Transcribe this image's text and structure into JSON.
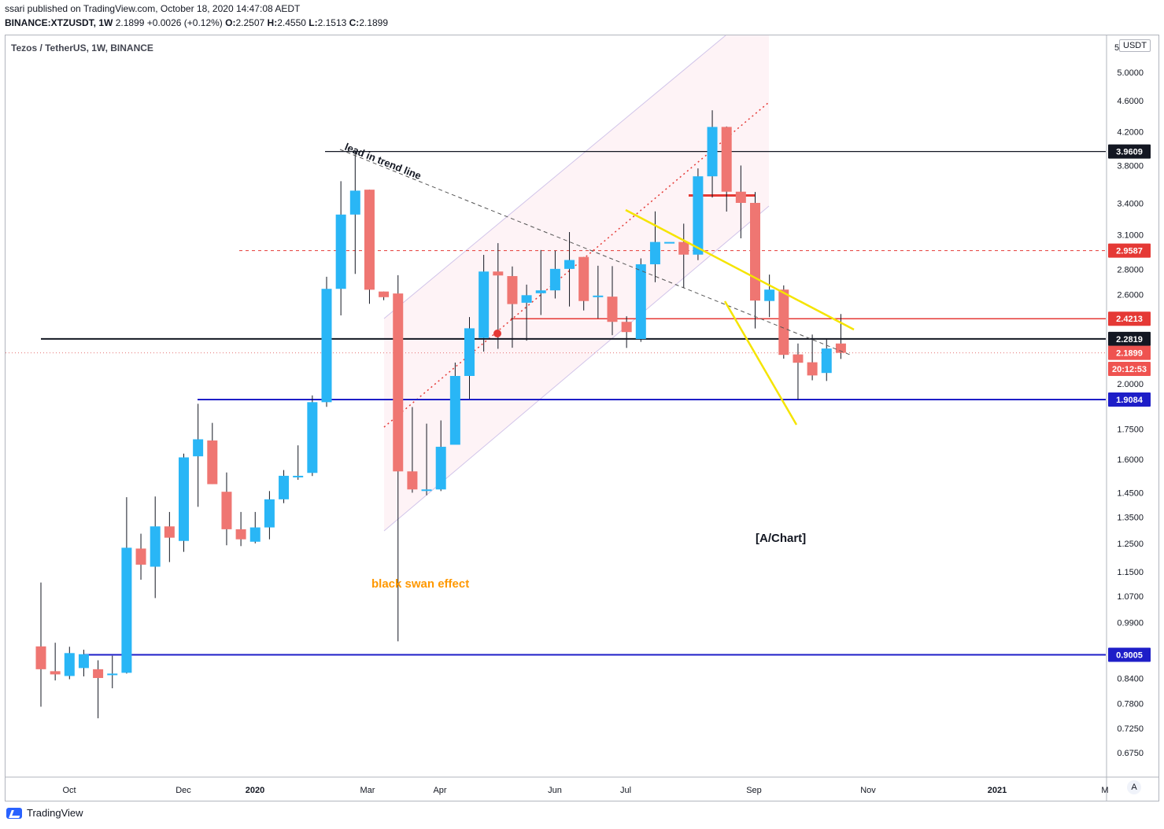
{
  "header": {
    "line1": "ssari published on TradingView.com, October 18, 2020 14:47:08 AEDT",
    "symbol": "BINANCE:XTZUSDT, 1W",
    "price": "2.1899",
    "change": "+0.0026 (+0.12%)",
    "o_label": "O:",
    "o_value": "2.2507",
    "h_label": "H:",
    "h_value": "2.4550",
    "l_label": "L:",
    "l_value": "2.1513",
    "c_label": "C:",
    "c_value": "2.1899"
  },
  "legend_title": "Tezos / TetherUS, 1W, BINANCE",
  "unit": "USDT",
  "auto_label": "A",
  "brand": "TradingView",
  "colors": {
    "up": "#29b6f6",
    "down": "#ef7672",
    "background": "#ffffff"
  },
  "chart_data": {
    "type": "candlestick",
    "scale": "log",
    "ylim": [
      0.63,
      5.5
    ],
    "title": "Tezos / TetherUS, 1W, BINANCE",
    "x_tick_labels": [
      "Oct",
      "Dec",
      "2020",
      "Mar",
      "Apr",
      "Jun",
      "Jul",
      "Sep",
      "Nov",
      "2021",
      "M"
    ],
    "y_tick_labels": [
      "0.6750",
      "0.7250",
      "0.7800",
      "0.8400",
      "0.9900",
      "1.0700",
      "1.1500",
      "1.2500",
      "1.3500",
      "1.4500",
      "1.6000",
      "1.7500",
      "2.0000",
      "2.6000",
      "2.8000",
      "3.1000",
      "3.4000",
      "3.8000",
      "4.2000",
      "4.6000",
      "5.0000",
      "5"
    ],
    "candles": [
      {
        "o": 0.923,
        "h": 1.114,
        "l": 0.773,
        "c": 0.863
      },
      {
        "o": 0.858,
        "h": 0.933,
        "l": 0.835,
        "c": 0.85
      },
      {
        "o": 0.846,
        "h": 0.922,
        "l": 0.838,
        "c": 0.905
      },
      {
        "o": 0.866,
        "h": 0.914,
        "l": 0.845,
        "c": 0.902
      },
      {
        "o": 0.863,
        "h": 0.886,
        "l": 0.747,
        "c": 0.841
      },
      {
        "o": 0.852,
        "h": 0.898,
        "l": 0.816,
        "c": 0.852
      },
      {
        "o": 0.854,
        "h": 1.432,
        "l": 0.852,
        "c": 1.234
      },
      {
        "o": 1.231,
        "h": 1.286,
        "l": 1.123,
        "c": 1.174
      },
      {
        "o": 1.167,
        "h": 1.435,
        "l": 1.064,
        "c": 1.314
      },
      {
        "o": 1.314,
        "h": 1.371,
        "l": 1.183,
        "c": 1.271
      },
      {
        "o": 1.259,
        "h": 1.628,
        "l": 1.219,
        "c": 1.61
      },
      {
        "o": 1.615,
        "h": 1.885,
        "l": 1.392,
        "c": 1.698
      },
      {
        "o": 1.692,
        "h": 1.782,
        "l": 1.488,
        "c": 1.488
      },
      {
        "o": 1.455,
        "h": 1.54,
        "l": 1.243,
        "c": 1.303
      },
      {
        "o": 1.303,
        "h": 1.371,
        "l": 1.24,
        "c": 1.265
      },
      {
        "o": 1.256,
        "h": 1.371,
        "l": 1.25,
        "c": 1.31
      },
      {
        "o": 1.31,
        "h": 1.458,
        "l": 1.265,
        "c": 1.423
      },
      {
        "o": 1.423,
        "h": 1.551,
        "l": 1.407,
        "c": 1.525
      },
      {
        "o": 1.525,
        "h": 1.668,
        "l": 1.507,
        "c": 1.525
      },
      {
        "o": 1.538,
        "h": 1.932,
        "l": 1.524,
        "c": 1.894
      },
      {
        "o": 1.894,
        "h": 2.74,
        "l": 1.868,
        "c": 2.644
      },
      {
        "o": 2.644,
        "h": 3.63,
        "l": 2.445,
        "c": 3.29
      },
      {
        "o": 3.29,
        "h": 3.96,
        "l": 2.763,
        "c": 3.53
      },
      {
        "o": 3.54,
        "h": 3.54,
        "l": 2.53,
        "c": 2.637
      },
      {
        "o": 2.623,
        "h": 2.623,
        "l": 2.557,
        "c": 2.58
      },
      {
        "o": 2.608,
        "h": 2.752,
        "l": 0.937,
        "c": 1.545
      },
      {
        "o": 1.545,
        "h": 1.867,
        "l": 1.451,
        "c": 1.465
      },
      {
        "o": 1.465,
        "h": 1.778,
        "l": 1.44,
        "c": 1.465
      },
      {
        "o": 1.465,
        "h": 1.795,
        "l": 1.458,
        "c": 1.661
      },
      {
        "o": 1.671,
        "h": 2.128,
        "l": 1.708,
        "c": 2.046
      },
      {
        "o": 2.046,
        "h": 2.433,
        "l": 1.913,
        "c": 2.354
      },
      {
        "o": 2.288,
        "h": 2.922,
        "l": 2.198,
        "c": 2.782
      },
      {
        "o": 2.782,
        "h": 3.025,
        "l": 2.216,
        "c": 2.75
      },
      {
        "o": 2.745,
        "h": 2.824,
        "l": 2.223,
        "c": 2.528
      },
      {
        "o": 2.538,
        "h": 2.677,
        "l": 2.27,
        "c": 2.595
      },
      {
        "o": 2.61,
        "h": 2.964,
        "l": 2.448,
        "c": 2.632
      },
      {
        "o": 2.632,
        "h": 2.958,
        "l": 2.57,
        "c": 2.804
      },
      {
        "o": 2.804,
        "h": 3.125,
        "l": 2.51,
        "c": 2.878
      },
      {
        "o": 2.904,
        "h": 2.904,
        "l": 2.481,
        "c": 2.551
      },
      {
        "o": 2.592,
        "h": 2.83,
        "l": 2.424,
        "c": 2.592
      },
      {
        "o": 2.584,
        "h": 2.827,
        "l": 2.307,
        "c": 2.399
      },
      {
        "o": 2.399,
        "h": 2.439,
        "l": 2.222,
        "c": 2.328
      },
      {
        "o": 2.281,
        "h": 2.892,
        "l": 2.262,
        "c": 2.842
      },
      {
        "o": 2.842,
        "h": 3.321,
        "l": 2.696,
        "c": 3.035
      },
      {
        "o": 3.035,
        "h": 3.035,
        "l": 3.035,
        "c": 3.035
      },
      {
        "o": 3.035,
        "h": 3.203,
        "l": 2.651,
        "c": 2.924
      },
      {
        "o": 2.924,
        "h": 3.769,
        "l": 2.877,
        "c": 3.682
      },
      {
        "o": 3.682,
        "h": 4.472,
        "l": 3.459,
        "c": 4.258
      },
      {
        "o": 4.258,
        "h": 4.264,
        "l": 3.319,
        "c": 3.519
      },
      {
        "o": 3.519,
        "h": 3.801,
        "l": 3.068,
        "c": 3.405
      },
      {
        "o": 3.405,
        "h": 3.516,
        "l": 2.353,
        "c": 2.554
      },
      {
        "o": 2.551,
        "h": 2.757,
        "l": 2.433,
        "c": 2.638
      },
      {
        "o": 2.638,
        "h": 2.671,
        "l": 2.153,
        "c": 2.177
      },
      {
        "o": 2.18,
        "h": 2.251,
        "l": 1.908,
        "c": 2.127
      },
      {
        "o": 2.13,
        "h": 2.311,
        "l": 2.02,
        "c": 2.049
      },
      {
        "o": 2.064,
        "h": 2.286,
        "l": 2.016,
        "c": 2.218
      },
      {
        "o": 2.251,
        "h": 2.455,
        "l": 2.151,
        "c": 2.19
      }
    ],
    "price_labels": [
      "3.9609",
      "2.9587",
      "2.4213",
      "2.2819",
      "2.1899",
      "20:12:53",
      "1.9084",
      "0.9005"
    ],
    "annotations": [
      "lead in trend line",
      "black swan effect",
      "[A/Chart]"
    ]
  }
}
